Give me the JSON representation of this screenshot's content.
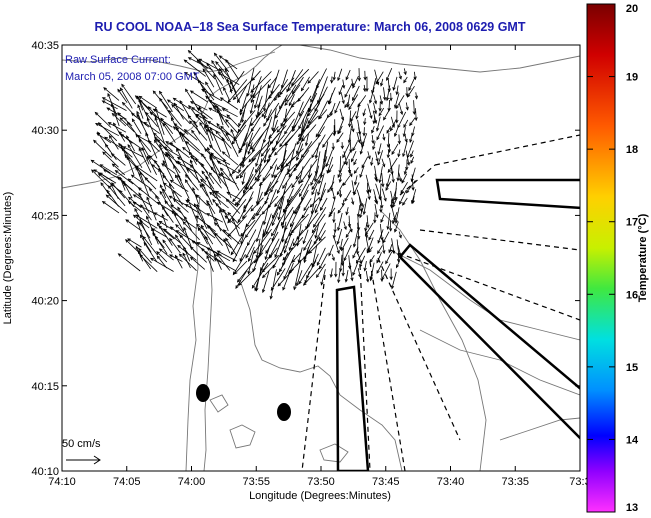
{
  "title": "RU COOL  NOAA–18  Sea Surface Temperature:  March 06, 2008 0629 GMT",
  "info": {
    "line1": "Raw Surface Current:",
    "line2": "March 05, 2008 07:00 GMT"
  },
  "scale": {
    "label": "50 cm/s"
  },
  "xaxis": {
    "label": "Longitude (Degrees:Minutes)",
    "ticks": [
      "74:10",
      "74:05",
      "74:00",
      "73:55",
      "73:50",
      "73:45",
      "73:40",
      "73:35",
      "73:3"
    ]
  },
  "yaxis": {
    "label": "Latitude (Degrees:Minutes)",
    "ticks": [
      "40:35",
      "40:30",
      "40:25",
      "40:20",
      "40:15",
      "40:10"
    ]
  },
  "colorbar": {
    "label": "Temperature (°C)",
    "ticks": [
      "20",
      "19",
      "18",
      "17",
      "16",
      "15",
      "14",
      "13"
    ],
    "min": 13,
    "max": 20
  },
  "colors": {
    "title": "#1d1db0",
    "frame": "#000000",
    "coast": "#777777"
  }
}
